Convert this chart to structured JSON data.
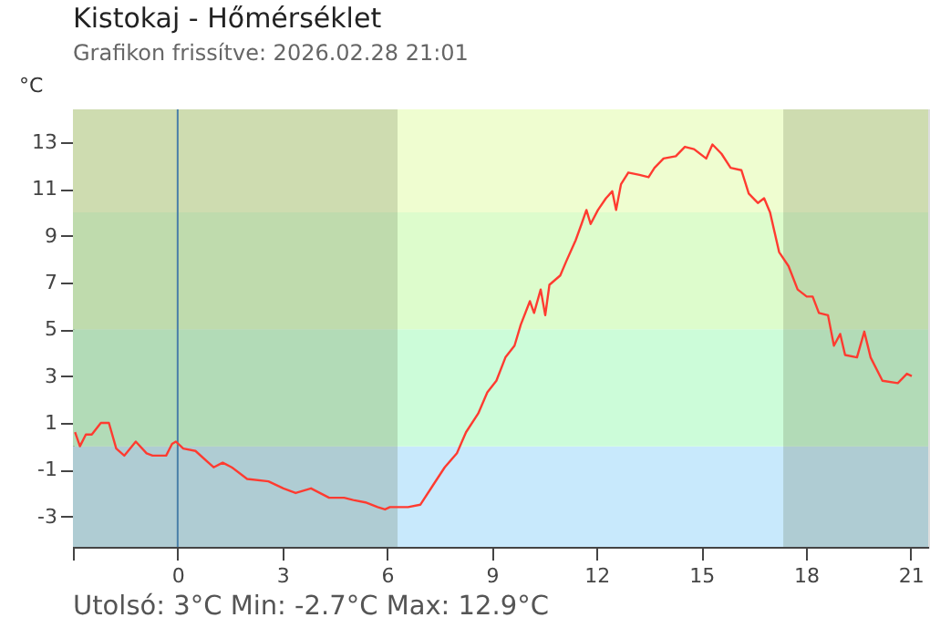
{
  "chart_data": {
    "type": "line",
    "title": "Kistokaj - Hőmérséklet",
    "subtitle": "Grafikon frissítve: 2026.02.28 21:01",
    "ylabel": "°C",
    "annotations": [
      "Utolsó: 3°C  Min: -2.7°C  Max: 12.9°C"
    ],
    "xlim": [
      -3,
      21.5
    ],
    "ylim": [
      -4.3,
      14.4
    ],
    "xticks": [
      {
        "value": -3,
        "label": null
      },
      0,
      3,
      6,
      9,
      12,
      15,
      18,
      21
    ],
    "yticks": [
      -3,
      -1,
      1,
      3,
      5,
      7,
      9,
      11,
      13
    ],
    "grid": false,
    "line_style": "solid",
    "marker": "none",
    "bands": [
      {
        "axis": "y",
        "from": -4.3,
        "to": 0,
        "color": "#c8e9fc"
      },
      {
        "axis": "y",
        "from": 0,
        "to": 5,
        "color": "#ccfcd9"
      },
      {
        "axis": "y",
        "from": 5,
        "to": 10,
        "color": "#ddfccc"
      },
      {
        "axis": "y",
        "from": 10,
        "to": 14.4,
        "color": "#effdd0"
      },
      {
        "axis": "x",
        "from": -3,
        "to": 6.3,
        "color": "#4a5a30"
      },
      {
        "axis": "x",
        "from": 17.35,
        "to": 21.5,
        "color": "#4a5a30"
      }
    ],
    "ref_lines": [
      {
        "axis": "x",
        "value": 0,
        "color": "#4a7fa8"
      }
    ],
    "series": [
      {
        "color": "#ff3b30",
        "x": [
          -2.94,
          -2.8,
          -2.63,
          -2.46,
          -2.2,
          -1.97,
          -1.76,
          -1.53,
          -1.2,
          -0.89,
          -0.72,
          -0.33,
          -0.16,
          -0.05,
          0.16,
          0.51,
          1.03,
          1.29,
          1.55,
          1.99,
          2.6,
          3.03,
          3.38,
          3.82,
          4.34,
          4.77,
          5.03,
          5.38,
          5.73,
          5.94,
          6.08,
          6.6,
          6.95,
          7.3,
          7.65,
          8.0,
          8.26,
          8.61,
          8.87,
          9.13,
          9.39,
          9.65,
          9.83,
          10.09,
          10.21,
          10.4,
          10.53,
          10.65,
          10.96,
          11.13,
          11.4,
          11.57,
          11.71,
          11.83,
          12.04,
          12.27,
          12.45,
          12.56,
          12.7,
          12.91,
          13.23,
          13.49,
          13.66,
          13.92,
          14.27,
          14.53,
          14.79,
          15.14,
          15.32,
          15.58,
          15.84,
          16.15,
          16.36,
          16.62,
          16.8,
          16.97,
          17.23,
          17.5,
          17.76,
          18.02,
          18.19,
          18.37,
          18.63,
          18.8,
          18.98,
          19.12,
          19.46,
          19.67,
          19.85,
          20.19,
          20.63,
          20.89,
          21.03
        ],
        "values": [
          0.6,
          0.0,
          0.5,
          0.5,
          1.0,
          1.0,
          -0.1,
          -0.4,
          0.2,
          -0.3,
          -0.4,
          -0.4,
          0.1,
          0.2,
          -0.1,
          -0.2,
          -0.9,
          -0.7,
          -0.9,
          -1.4,
          -1.5,
          -1.8,
          -2.0,
          -1.8,
          -2.2,
          -2.2,
          -2.3,
          -2.4,
          -2.6,
          -2.7,
          -2.6,
          -2.6,
          -2.5,
          -1.7,
          -0.9,
          -0.3,
          0.6,
          1.4,
          2.3,
          2.8,
          3.8,
          4.3,
          5.2,
          6.2,
          5.7,
          6.7,
          5.6,
          6.9,
          7.3,
          7.9,
          8.8,
          9.5,
          10.1,
          9.5,
          10.1,
          10.6,
          10.9,
          10.1,
          11.2,
          11.7,
          11.6,
          11.5,
          11.9,
          12.3,
          12.4,
          12.8,
          12.7,
          12.3,
          12.9,
          12.5,
          11.9,
          11.8,
          10.8,
          10.4,
          10.6,
          10.0,
          8.3,
          7.7,
          6.7,
          6.4,
          6.4,
          5.7,
          5.6,
          4.3,
          4.8,
          3.9,
          3.8,
          4.9,
          3.8,
          2.8,
          2.7,
          3.1,
          3.0
        ]
      }
    ]
  }
}
